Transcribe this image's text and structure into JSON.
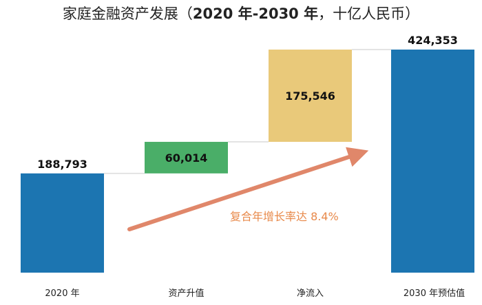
{
  "chart_data": {
    "type": "bar",
    "title_prefix": "家庭金融资产发展（",
    "title_bold": "2020 年-2030 年",
    "title_suffix": "，十亿人民币）",
    "categories": [
      "2020 年",
      "资产升值",
      "净流入",
      "2030 年预估值"
    ],
    "values": [
      188793,
      60014,
      175546,
      424353
    ],
    "value_labels": [
      "188,793",
      "60,014",
      "175,546",
      "424,353"
    ],
    "bar_kinds": [
      "total",
      "increment",
      "increment",
      "total"
    ],
    "ylim": [
      0,
      460000
    ],
    "grid": false,
    "legend": "none",
    "annotation": "复合年增长率达 8.4%",
    "colors": {
      "total": "#1C75B1",
      "appreciation": "#4AAE68",
      "inflow": "#E9C97A",
      "arrow": "#E0876A",
      "connector": "#E3E3E3",
      "annotation": "#E8894A"
    }
  }
}
